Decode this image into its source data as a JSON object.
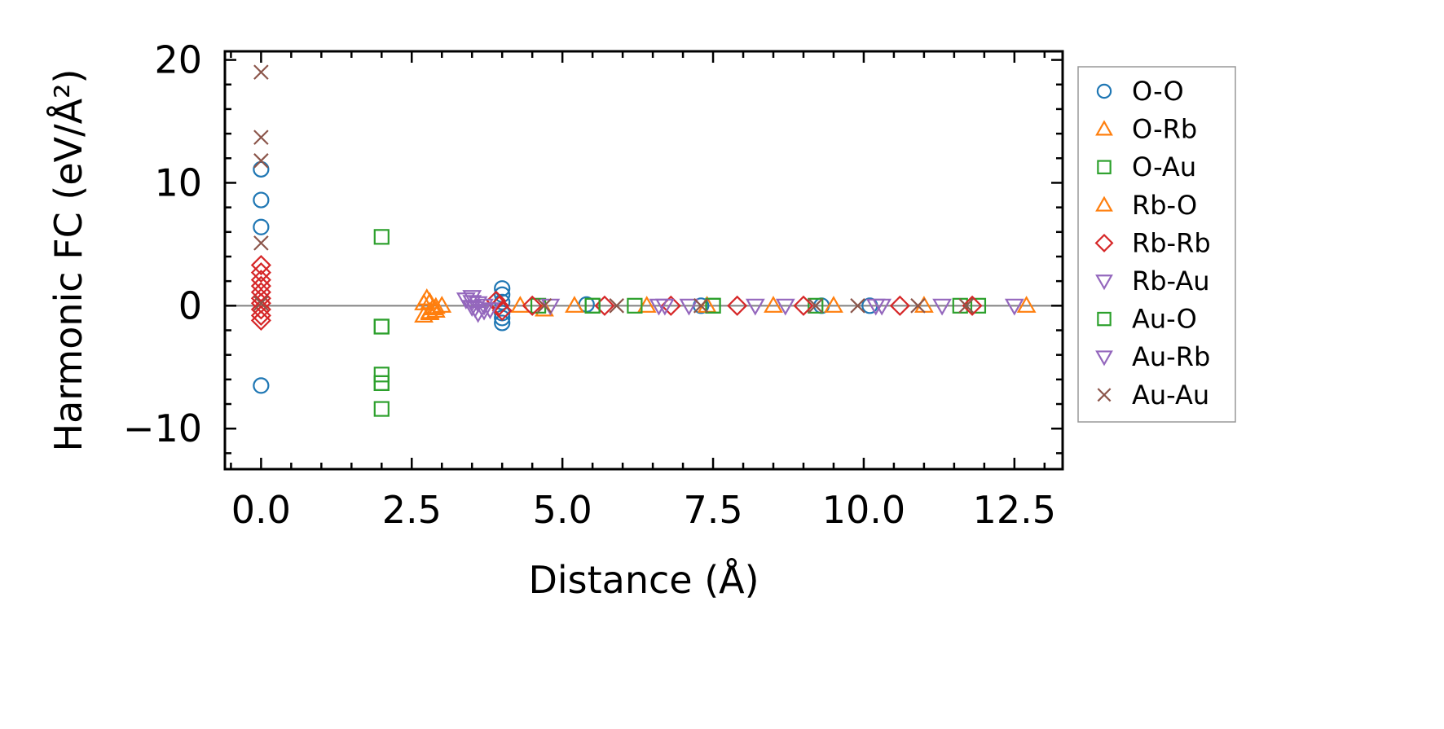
{
  "chart_data": {
    "type": "scatter",
    "xlabel": "Distance (Å)",
    "ylabel": "Harmonic FC (eV/Å²)",
    "xlim": [
      -0.6,
      13.3
    ],
    "ylim": [
      -13.3,
      20.7
    ],
    "x_ticks": [
      0.0,
      2.5,
      5.0,
      7.5,
      10.0,
      12.5
    ],
    "x_tick_labels": [
      "0.0",
      "2.5",
      "5.0",
      "7.5",
      "10.0",
      "12.5"
    ],
    "y_ticks": [
      -10,
      0,
      10,
      20
    ],
    "y_tick_labels": [
      "−10",
      "0",
      "10",
      "20"
    ],
    "zero_line": true,
    "grid": false,
    "legend_position": "outside-right",
    "series": [
      {
        "name": "O-O",
        "marker": "circle",
        "color": "#1f77b4",
        "points": [
          [
            0,
            11.1
          ],
          [
            0,
            8.6
          ],
          [
            0,
            6.4
          ],
          [
            0,
            -6.5
          ],
          [
            4.0,
            1.4
          ],
          [
            4.0,
            0.9
          ],
          [
            4.0,
            0.3
          ],
          [
            4.0,
            -0.6
          ],
          [
            4.0,
            -1.0
          ],
          [
            4.0,
            -1.4
          ],
          [
            5.4,
            0.1
          ],
          [
            7.3,
            0.0
          ],
          [
            9.3,
            0.0
          ],
          [
            10.1,
            0.0
          ]
        ]
      },
      {
        "name": "O-Rb",
        "marker": "triangle-up",
        "color": "#ff7f0e",
        "points": [
          [
            2.75,
            0.6
          ],
          [
            2.8,
            0.3
          ],
          [
            2.85,
            -0.2
          ],
          [
            2.8,
            -0.6
          ],
          [
            2.9,
            -0.4
          ],
          [
            2.7,
            -0.8
          ],
          [
            4.3,
            0.0
          ],
          [
            4.7,
            -0.3
          ],
          [
            5.2,
            0.0
          ],
          [
            6.4,
            0.0
          ],
          [
            7.4,
            0.0
          ],
          [
            8.5,
            0.0
          ],
          [
            9.5,
            0.0
          ],
          [
            11.0,
            0.0
          ],
          [
            12.7,
            0.0
          ]
        ]
      },
      {
        "name": "O-Au",
        "marker": "square",
        "color": "#2ca02c",
        "points": [
          [
            2.0,
            5.6
          ],
          [
            2.0,
            -1.7
          ],
          [
            2.0,
            -5.6
          ],
          [
            2.0,
            -6.3
          ],
          [
            2.0,
            -8.4
          ],
          [
            4.6,
            0.0
          ],
          [
            5.5,
            0.0
          ],
          [
            6.2,
            0.0
          ],
          [
            7.5,
            0.0
          ],
          [
            9.2,
            0.0
          ],
          [
            11.6,
            0.0
          ],
          [
            11.9,
            0.0
          ]
        ]
      },
      {
        "name": "Rb-O",
        "marker": "triangle-up",
        "color": "#ff7f0e",
        "points": [
          [
            2.7,
            0.2
          ],
          [
            2.9,
            -0.1
          ],
          [
            2.8,
            -0.5
          ],
          [
            3.0,
            0.0
          ]
        ]
      },
      {
        "name": "Rb-Rb",
        "marker": "diamond",
        "color": "#d62728",
        "points": [
          [
            0,
            3.3
          ],
          [
            0,
            2.7
          ],
          [
            0,
            2.1
          ],
          [
            0,
            1.6
          ],
          [
            0,
            1.1
          ],
          [
            0,
            0.6
          ],
          [
            0,
            0.2
          ],
          [
            0,
            -0.3
          ],
          [
            0,
            -0.8
          ],
          [
            0,
            -1.2
          ],
          [
            3.9,
            0.4
          ],
          [
            3.95,
            0.0
          ],
          [
            4.0,
            -0.4
          ],
          [
            4.5,
            0.0
          ],
          [
            5.7,
            0.0
          ],
          [
            6.8,
            0.0
          ],
          [
            7.9,
            0.0
          ],
          [
            9.0,
            0.0
          ],
          [
            10.6,
            0.0
          ],
          [
            11.8,
            0.0
          ]
        ]
      },
      {
        "name": "Rb-Au",
        "marker": "triangle-down",
        "color": "#9467bd",
        "points": [
          [
            3.5,
            0.7
          ],
          [
            3.5,
            0.3
          ],
          [
            3.55,
            -0.2
          ],
          [
            3.6,
            -0.6
          ],
          [
            3.7,
            0.0
          ],
          [
            3.8,
            -0.3
          ],
          [
            4.8,
            0.0
          ],
          [
            6.6,
            0.0
          ],
          [
            7.1,
            0.0
          ],
          [
            8.2,
            0.0
          ],
          [
            10.2,
            0.0
          ],
          [
            11.3,
            0.0
          ],
          [
            12.5,
            0.0
          ]
        ]
      },
      {
        "name": "Au-O",
        "marker": "square",
        "color": "#2ca02c",
        "points": [
          [
            2.0,
            -1.7
          ],
          [
            2.0,
            -6.3
          ],
          [
            5.5,
            0.0
          ],
          [
            7.5,
            0.0
          ]
        ]
      },
      {
        "name": "Au-Rb",
        "marker": "triangle-down",
        "color": "#9467bd",
        "points": [
          [
            3.4,
            0.5
          ],
          [
            3.5,
            -0.1
          ],
          [
            3.6,
            0.2
          ],
          [
            3.7,
            -0.4
          ],
          [
            6.7,
            0.0
          ],
          [
            8.7,
            0.0
          ],
          [
            10.3,
            0.0
          ]
        ]
      },
      {
        "name": "Au-Au",
        "marker": "x",
        "color": "#8c564b",
        "points": [
          [
            0,
            19.0
          ],
          [
            0,
            13.7
          ],
          [
            0,
            11.8
          ],
          [
            0,
            5.1
          ],
          [
            0,
            0.2
          ],
          [
            4.7,
            0.0
          ],
          [
            5.9,
            0.0
          ],
          [
            7.3,
            0.0
          ],
          [
            9.2,
            0.0
          ],
          [
            9.9,
            0.0
          ],
          [
            10.9,
            0.0
          ],
          [
            11.7,
            0.0
          ]
        ]
      }
    ]
  }
}
